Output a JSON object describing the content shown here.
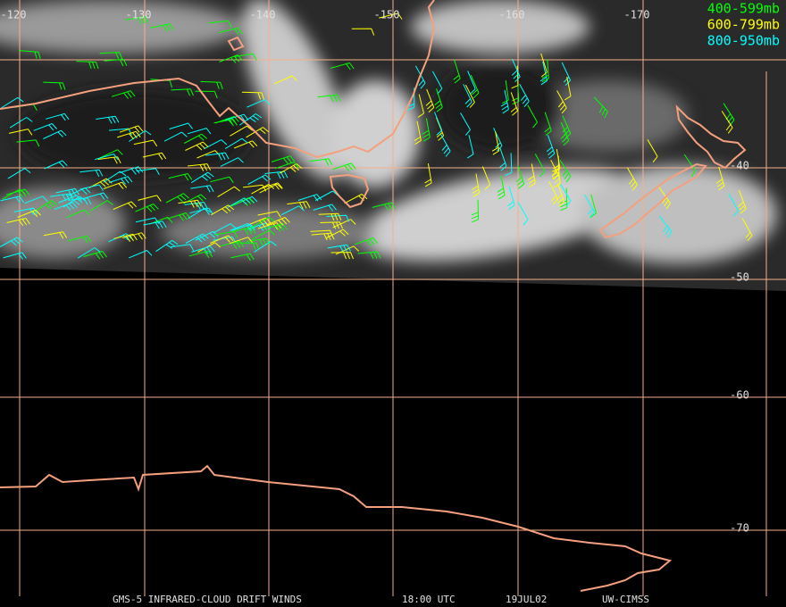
{
  "map": {
    "lon_labels": [
      "-120",
      "-130",
      "-140",
      "-150",
      "-160",
      "-170"
    ],
    "lat_labels": [
      "-40",
      "-50",
      "-60",
      "-70"
    ],
    "legend": [
      {
        "label": "400-599mb",
        "color": "#00ff00"
      },
      {
        "label": "600-799mb",
        "color": "#ffff00"
      },
      {
        "label": "800-950mb",
        "color": "#00ffff"
      }
    ],
    "footer": [
      "GMS-5 INFRARED-CLOUD DRIFT WINDS",
      "18:00 UTC",
      "19JUL02",
      "UW-CIMSS"
    ]
  }
}
